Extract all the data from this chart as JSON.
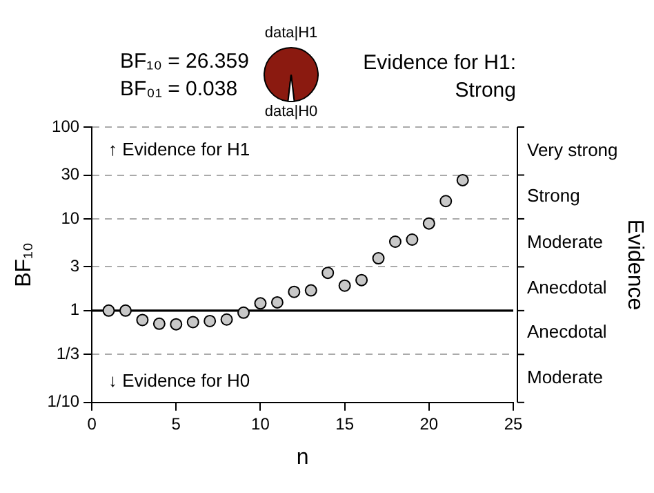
{
  "chart_data": [
    {
      "type": "scatter",
      "xlabel": "n",
      "ylabel": "BF₁₀",
      "y2label": "Evidence",
      "annotations": [
        "BF₁₀ = 26.359",
        "BF₀₁ = 0.038",
        "Evidence for H1: Strong",
        "↑ Evidence for H1",
        "↓ Evidence for H0",
        "Very strong",
        "Strong",
        "Moderate",
        "Anecdotal",
        "Anecdotal",
        "Moderate"
      ],
      "x": [
        1,
        2,
        3,
        4,
        5,
        6,
        7,
        8,
        9,
        10,
        11,
        12,
        13,
        14,
        15,
        16,
        17,
        18,
        19,
        20,
        21,
        22
      ],
      "series": [
        {
          "color": "#c8c8c8",
          "values": [
            1.0,
            1.0,
            0.79,
            0.72,
            0.71,
            0.75,
            0.77,
            0.8,
            0.95,
            1.2,
            1.23,
            1.6,
            1.66,
            2.58,
            1.87,
            2.15,
            3.72,
            5.64,
            5.94,
            8.9,
            15.6,
            26.4
          ]
        }
      ],
      "xlim": [
        0,
        25
      ],
      "xticks": [
        0,
        5,
        10,
        15,
        20,
        25
      ],
      "ylim": [
        0.1,
        100
      ],
      "yticks": [
        {
          "value": 0.1,
          "label": "1/10"
        },
        {
          "value": 0.3333,
          "label": "1/3"
        },
        1,
        3,
        10,
        30,
        100
      ],
      "ref_lines": [
        {
          "axis": "y",
          "value": 1,
          "color": "#000000",
          "line_style": "solid"
        }
      ],
      "log": "y",
      "grid": "y",
      "legend": false,
      "marker": "circle"
    },
    {
      "type": "pie",
      "categories": [
        "data|H1",
        "data|H0"
      ],
      "values": [
        96.3,
        3.7
      ],
      "colors": [
        "#8b1a10",
        "#ffffff"
      ]
    }
  ]
}
